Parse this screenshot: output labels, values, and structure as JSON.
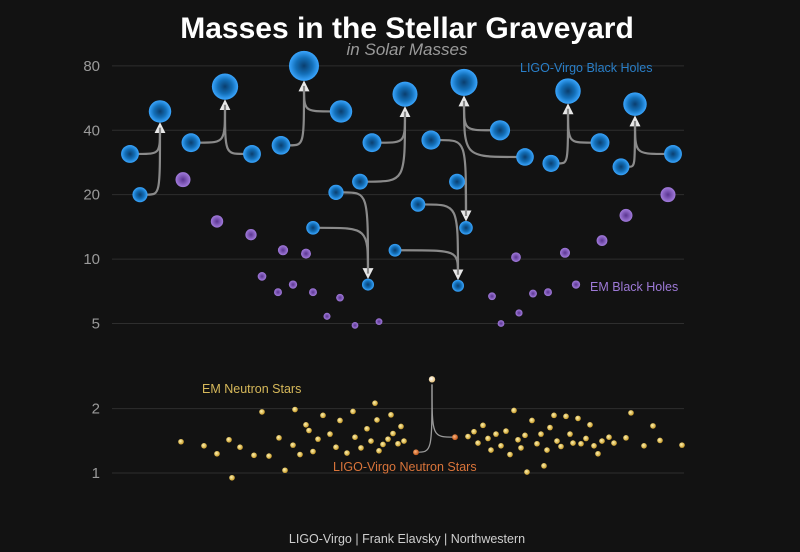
{
  "chart_data": {
    "type": "scatter",
    "title": "Masses in the Stellar Graveyard",
    "subtitle": "in Solar Masses",
    "y_scale": "log",
    "ylim": [
      0.88,
      95
    ],
    "y_ticks": [
      {
        "value": 1,
        "label": "1"
      },
      {
        "value": 2,
        "label": "2"
      },
      {
        "value": 5,
        "label": "5"
      },
      {
        "value": 10,
        "label": "10"
      },
      {
        "value": 20,
        "label": "20"
      },
      {
        "value": 40,
        "label": "40"
      },
      {
        "value": 80,
        "label": "80"
      }
    ],
    "grid": true,
    "credit": "LIGO-Virgo | Frank Elavsky | Northwestern",
    "series": [
      {
        "name": "LIGO-Virgo Black Holes",
        "color": "#1e8fe0"
      },
      {
        "name": "EM Black Holes",
        "color": "#9b6fd0"
      },
      {
        "name": "EM Neutron Stars",
        "color": "#e0c050"
      },
      {
        "name": "LIGO-Virgo Neutron Stars",
        "color": "#e07830"
      }
    ],
    "ligo_mergers": [
      {
        "inputs": [
          [
            130,
            31
          ],
          [
            140,
            20
          ]
        ],
        "final": [
          160,
          49
        ]
      },
      {
        "inputs": [
          [
            191,
            35
          ],
          [
            252,
            31
          ]
        ],
        "final": [
          225,
          64
        ]
      },
      {
        "inputs": [
          [
            281,
            34
          ],
          [
            341,
            49
          ]
        ],
        "final": [
          304,
          80
        ]
      },
      {
        "inputs": [
          [
            372,
            35
          ],
          [
            360,
            23
          ]
        ],
        "final": [
          405,
          59
        ]
      },
      {
        "inputs": [
          [
            336,
            20.5
          ],
          [
            313,
            14
          ]
        ],
        "final": [
          368,
          7.6
        ]
      },
      {
        "inputs": [
          [
            418,
            18
          ],
          [
            395,
            11
          ]
        ],
        "final": [
          458,
          7.5
        ]
      },
      {
        "inputs": [
          [
            431,
            36
          ],
          [
            457,
            23
          ]
        ],
        "final": [
          466,
          14
        ]
      },
      {
        "inputs": [
          [
            500,
            40
          ],
          [
            525,
            30
          ]
        ],
        "final": [
          464,
          67
        ]
      },
      {
        "inputs": [
          [
            551,
            28
          ],
          [
            600,
            35
          ]
        ],
        "final": [
          568,
          61
        ]
      },
      {
        "inputs": [
          [
            621,
            27
          ],
          [
            673,
            31
          ]
        ],
        "final": [
          635,
          53
        ]
      }
    ],
    "em_black_holes": [
      [
        183,
        23.5
      ],
      [
        217,
        15
      ],
      [
        251,
        13
      ],
      [
        262,
        8.3
      ],
      [
        278,
        7
      ],
      [
        283,
        11
      ],
      [
        293,
        7.6
      ],
      [
        306,
        10.6
      ],
      [
        313,
        7
      ],
      [
        327,
        5.4
      ],
      [
        340,
        6.6
      ],
      [
        355,
        4.9
      ],
      [
        379,
        5.1
      ],
      [
        492,
        6.7
      ],
      [
        501,
        5
      ],
      [
        516,
        10.2
      ],
      [
        519,
        5.6
      ],
      [
        533,
        6.9
      ],
      [
        548,
        7
      ],
      [
        565,
        10.7
      ],
      [
        576,
        7.6
      ],
      [
        602,
        12.2
      ],
      [
        626,
        16
      ],
      [
        668,
        20
      ]
    ],
    "em_neutron_stars": [
      [
        181,
        1.4
      ],
      [
        204,
        1.34
      ],
      [
        217,
        1.23
      ],
      [
        229,
        1.43
      ],
      [
        232,
        0.95
      ],
      [
        240,
        1.32
      ],
      [
        254,
        1.21
      ],
      [
        262,
        1.93
      ],
      [
        269,
        1.2
      ],
      [
        279,
        1.46
      ],
      [
        285,
        1.03
      ],
      [
        293,
        1.35
      ],
      [
        295,
        1.98
      ],
      [
        300,
        1.22
      ],
      [
        306,
        1.68
      ],
      [
        309,
        1.58
      ],
      [
        313,
        1.26
      ],
      [
        318,
        1.44
      ],
      [
        323,
        1.86
      ],
      [
        330,
        1.52
      ],
      [
        336,
        1.32
      ],
      [
        340,
        1.76
      ],
      [
        347,
        1.24
      ],
      [
        353,
        1.94
      ],
      [
        355,
        1.47
      ],
      [
        361,
        1.31
      ],
      [
        367,
        1.61
      ],
      [
        371,
        1.41
      ],
      [
        375,
        2.12
      ],
      [
        377,
        1.77
      ],
      [
        379,
        1.27
      ],
      [
        383,
        1.36
      ],
      [
        388,
        1.44
      ],
      [
        391,
        1.87
      ],
      [
        393,
        1.53
      ],
      [
        398,
        1.37
      ],
      [
        401,
        1.65
      ],
      [
        404,
        1.41
      ],
      [
        468,
        1.48
      ],
      [
        474,
        1.56
      ],
      [
        478,
        1.38
      ],
      [
        483,
        1.67
      ],
      [
        488,
        1.45
      ],
      [
        491,
        1.28
      ],
      [
        496,
        1.52
      ],
      [
        501,
        1.34
      ],
      [
        506,
        1.57
      ],
      [
        510,
        1.22
      ],
      [
        514,
        1.96
      ],
      [
        518,
        1.43
      ],
      [
        521,
        1.31
      ],
      [
        525,
        1.5
      ],
      [
        527,
        1.01
      ],
      [
        532,
        1.76
      ],
      [
        537,
        1.37
      ],
      [
        541,
        1.52
      ],
      [
        544,
        1.08
      ],
      [
        547,
        1.28
      ],
      [
        550,
        1.63
      ],
      [
        554,
        1.86
      ],
      [
        557,
        1.41
      ],
      [
        561,
        1.33
      ],
      [
        566,
        1.84
      ],
      [
        570,
        1.52
      ],
      [
        573,
        1.38
      ],
      [
        578,
        1.8
      ],
      [
        581,
        1.37
      ],
      [
        586,
        1.45
      ],
      [
        590,
        1.68
      ],
      [
        594,
        1.34
      ],
      [
        598,
        1.23
      ],
      [
        602,
        1.41
      ],
      [
        609,
        1.47
      ],
      [
        614,
        1.38
      ],
      [
        626,
        1.46
      ],
      [
        631,
        1.91
      ],
      [
        644,
        1.34
      ],
      [
        653,
        1.66
      ],
      [
        660,
        1.42
      ],
      [
        682,
        1.35
      ]
    ],
    "ligo_neutron_stars": {
      "inputs": [
        [
          416,
          1.25
        ],
        [
          455,
          1.47
        ]
      ],
      "final": [
        432,
        2.74
      ]
    }
  },
  "labels": {
    "ligo_bh": "LIGO-Virgo Black Holes",
    "em_bh": "EM Black Holes",
    "em_ns": "EM Neutron Stars",
    "ligo_ns": "LIGO-Virgo Neutron Stars"
  }
}
